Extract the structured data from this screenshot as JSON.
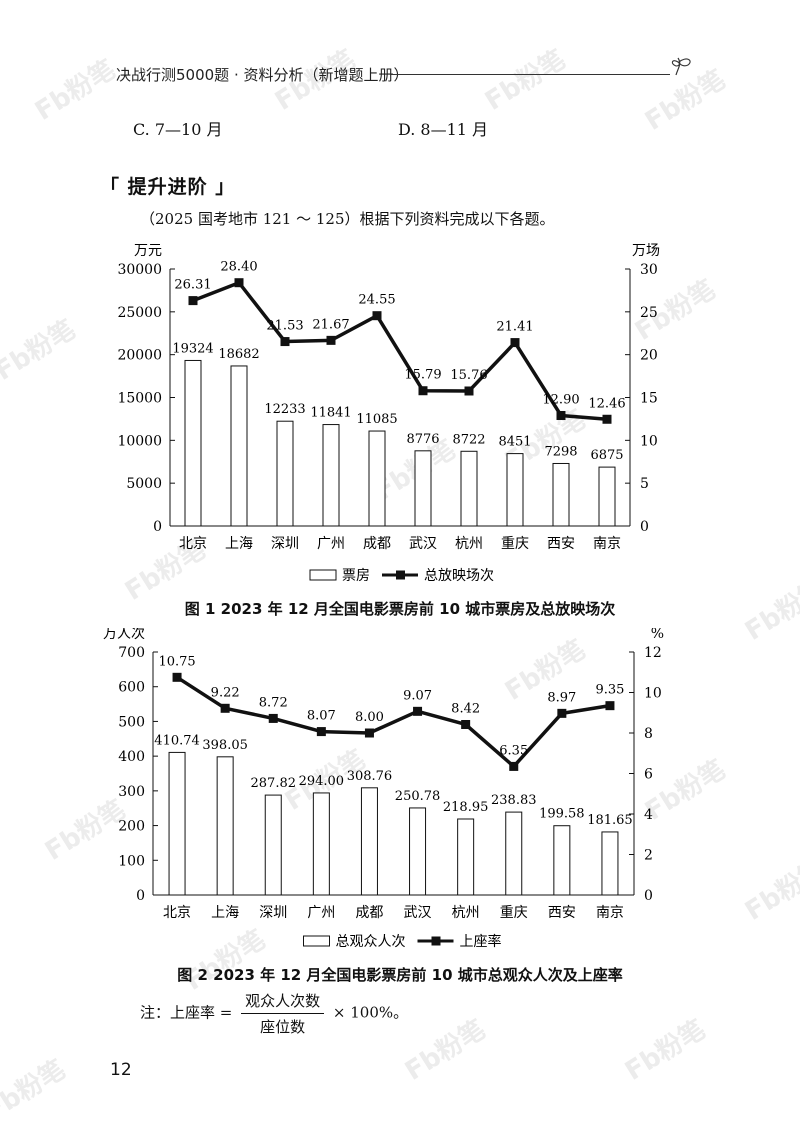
{
  "header": {
    "title": "决战行测5000题 · 资料分析（新增题上册）"
  },
  "options": {
    "c": "C. 7—10 月",
    "d": "D. 8—11 月"
  },
  "section": {
    "title": "「 提升进阶 」"
  },
  "intro": "（2025  国考地市  121 ～ 125）根据下列资料完成以下各题。",
  "watermark": "Fb粉笔",
  "fig1": {
    "caption": "图 1   2023 年 12 月全国电影票房前 10 城市票房及总放映场次",
    "left_unit": "万元",
    "right_unit": "万场",
    "legend_bar": "票房",
    "legend_line": "总放映场次"
  },
  "fig2": {
    "caption": "图 2   2023 年 12 月全国电影票房前 10 城市总观众人次及上座率",
    "left_unit": "万人次",
    "right_unit": "%",
    "legend_bar": "总观众人次",
    "legend_line": "上座率"
  },
  "note": {
    "prefix": "注：上座率 =",
    "numerator": "观众人次数",
    "denominator": "座位数",
    "suffix": "× 100%。"
  },
  "page_number": "12",
  "chart_data": [
    {
      "type": "bar",
      "categories": [
        "北京",
        "上海",
        "深圳",
        "广州",
        "成都",
        "武汉",
        "杭州",
        "重庆",
        "西安",
        "南京"
      ],
      "series": [
        {
          "name": "票房",
          "type": "bar",
          "axis": "left",
          "values": [
            19324,
            18682,
            12233,
            11841,
            11085,
            8776,
            8722,
            8451,
            7298,
            6875
          ],
          "labels": [
            "19324",
            "18682",
            "12233",
            "11841",
            "11085",
            "8776",
            "8722",
            "8451",
            "7298",
            "6875"
          ]
        },
        {
          "name": "总放映场次",
          "type": "line",
          "axis": "right",
          "values": [
            26.31,
            28.4,
            21.53,
            21.67,
            24.55,
            15.79,
            15.76,
            21.41,
            12.9,
            12.46
          ],
          "labels": [
            "26.31",
            "28.40",
            "21.53",
            "21.67",
            "24.55",
            "15.79",
            "15.76",
            "21.41",
            "12.90",
            "12.46"
          ]
        }
      ],
      "ylabel": "万元",
      "y2label": "万场",
      "ylim": [
        0,
        30000
      ],
      "yticks": [
        "0",
        "5000",
        "10000",
        "15000",
        "20000",
        "25000",
        "30000"
      ],
      "y2lim": [
        0,
        30
      ],
      "y2ticks": [
        "0",
        "5",
        "10",
        "15",
        "20",
        "25",
        "30"
      ],
      "title": "图 1   2023 年 12 月全国电影票房前 10 城市票房及总放映场次",
      "legend": "bottom",
      "grid": false
    },
    {
      "type": "bar",
      "categories": [
        "北京",
        "上海",
        "深圳",
        "广州",
        "成都",
        "武汉",
        "杭州",
        "重庆",
        "西安",
        "南京"
      ],
      "series": [
        {
          "name": "总观众人次",
          "type": "bar",
          "axis": "left",
          "values": [
            410.74,
            398.05,
            287.82,
            294.0,
            308.76,
            250.78,
            218.95,
            238.83,
            199.58,
            181.65
          ],
          "labels": [
            "410.74",
            "398.05",
            "287.82",
            "294.00",
            "308.76",
            "250.78",
            "218.95",
            "238.83",
            "199.58",
            "181.65"
          ]
        },
        {
          "name": "上座率",
          "type": "line",
          "axis": "right",
          "values": [
            10.75,
            9.22,
            8.72,
            8.07,
            8.0,
            9.07,
            8.42,
            6.35,
            8.97,
            9.35
          ],
          "labels": [
            "10.75",
            "9.22",
            "8.72",
            "8.07",
            "8.00",
            "9.07",
            "8.42",
            "6.35",
            "8.97",
            "9.35"
          ]
        }
      ],
      "ylabel": "万人次",
      "y2label": "%",
      "ylim": [
        0,
        700
      ],
      "yticks": [
        "0",
        "100",
        "200",
        "300",
        "400",
        "500",
        "600",
        "700"
      ],
      "y2lim": [
        0,
        12
      ],
      "y2ticks": [
        "0",
        "2",
        "4",
        "6",
        "8",
        "10",
        "12"
      ],
      "title": "图 2   2023 年 12 月全国电影票房前 10 城市总观众人次及上座率",
      "legend": "bottom",
      "grid": false
    }
  ]
}
